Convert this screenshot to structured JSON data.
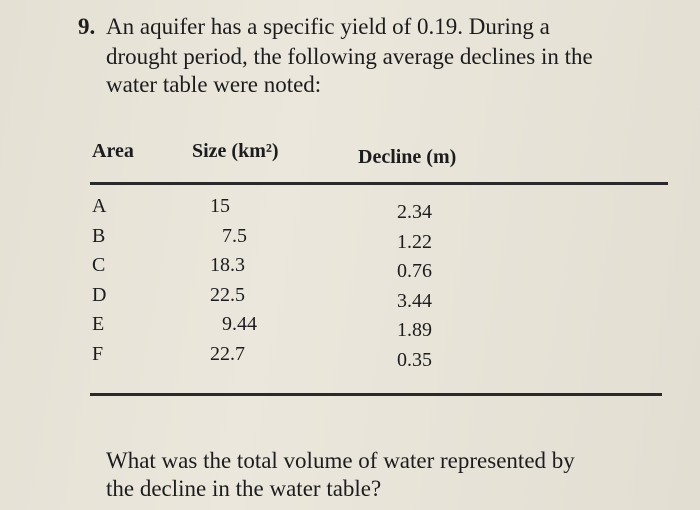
{
  "problem": {
    "number": "9.",
    "intro": [
      "An aquifer has a specific yield of 0.19. During a",
      "drought period, the following average declines in the",
      "water table were noted:"
    ],
    "table": {
      "headers": [
        "Area",
        "Size (km²)",
        "Decline (m)"
      ],
      "rows": [
        [
          "A",
          15,
          2.34
        ],
        [
          "B",
          7.5,
          1.22
        ],
        [
          "C",
          18.3,
          0.76
        ],
        [
          "D",
          22.5,
          3.44
        ],
        [
          "E",
          9.44,
          1.89
        ],
        [
          "F",
          22.7,
          0.35
        ]
      ]
    },
    "question": [
      "What was the total volume of water represented by",
      "the decline in the water table?"
    ]
  }
}
